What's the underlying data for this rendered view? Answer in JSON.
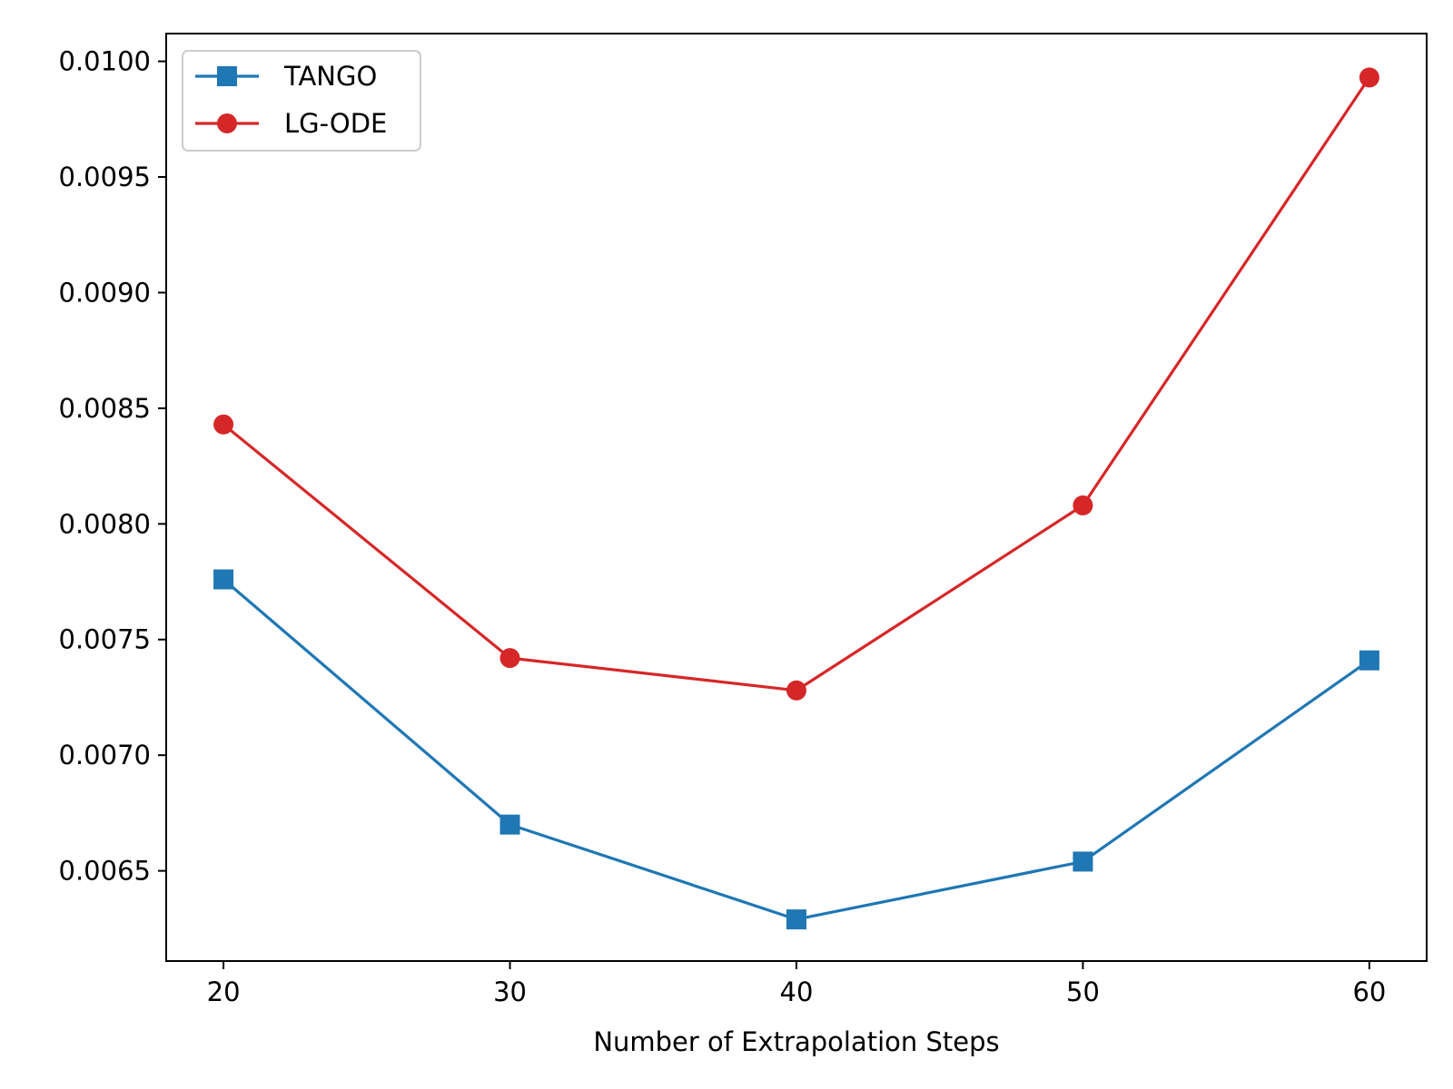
{
  "chart_data": {
    "type": "line",
    "title": "",
    "xlabel": "Number of Extrapolation Steps",
    "ylabel": "",
    "x": [
      20,
      30,
      40,
      50,
      60
    ],
    "xticks": [
      "20",
      "30",
      "40",
      "50",
      "60"
    ],
    "yticks": [
      "0.0065",
      "0.0070",
      "0.0075",
      "0.0080",
      "0.0085",
      "0.0090",
      "0.0095",
      "0.0100"
    ],
    "xlim": [
      18.0,
      62.0
    ],
    "ylim": [
      0.00611,
      0.01012
    ],
    "grid": false,
    "legend_position": "upper-left",
    "series": [
      {
        "name": "TANGO",
        "color": "#1f77b4",
        "marker": "square",
        "values": [
          0.00776,
          0.0067,
          0.00629,
          0.00654,
          0.00741
        ]
      },
      {
        "name": "LG-ODE",
        "color": "#d62728",
        "marker": "circle",
        "values": [
          0.00843,
          0.00742,
          0.00728,
          0.00808,
          0.00993
        ]
      }
    ]
  }
}
